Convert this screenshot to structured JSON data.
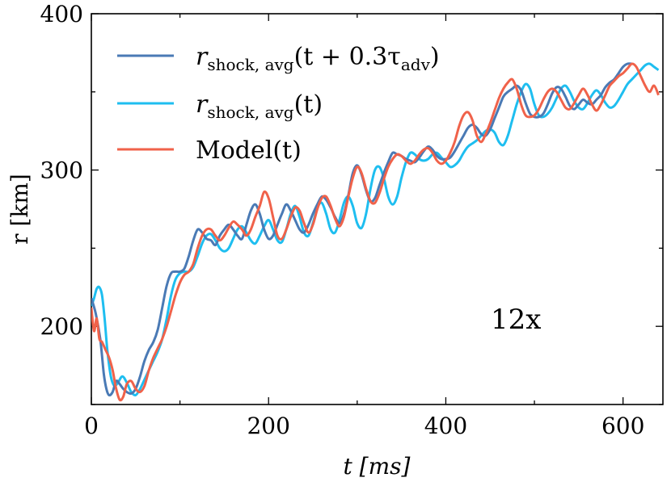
{
  "chart_data": {
    "type": "line",
    "title": "",
    "xlabel": "t [ms]",
    "ylabel": "r [km]",
    "xlim": [
      0,
      645
    ],
    "ylim": [
      150,
      400
    ],
    "xticks": [
      0,
      200,
      400,
      600
    ],
    "yticks": [
      200,
      300,
      400
    ],
    "annotation": "12x",
    "legend_position": "top-left",
    "series": [
      {
        "name": "r_shock,avg(t + 0.3τ_adv)",
        "color": "#4a7ab5",
        "x": [
          0,
          5,
          10,
          14,
          17,
          20,
          24,
          28,
          32,
          36,
          40,
          45,
          50,
          55,
          60,
          65,
          70,
          75,
          80,
          85,
          90,
          95,
          100,
          105,
          110,
          115,
          120,
          125,
          130,
          135,
          140,
          145,
          150,
          155,
          160,
          165,
          170,
          175,
          180,
          185,
          190,
          195,
          200,
          205,
          210,
          215,
          220,
          225,
          230,
          235,
          240,
          245,
          250,
          255,
          260,
          265,
          270,
          275,
          280,
          285,
          290,
          295,
          300,
          305,
          310,
          315,
          320,
          325,
          330,
          335,
          340,
          345,
          350,
          355,
          360,
          365,
          370,
          375,
          380,
          385,
          390,
          395,
          400,
          405,
          410,
          415,
          420,
          425,
          430,
          435,
          440,
          445,
          450,
          455,
          460,
          465,
          470,
          475,
          480,
          485,
          490,
          495,
          500,
          505,
          510,
          515,
          520,
          525,
          530,
          535,
          540,
          545,
          550,
          555,
          560,
          565,
          570,
          575,
          580,
          585,
          590,
          595,
          600,
          605,
          610
        ],
        "y": [
          218,
          208,
          192,
          170,
          160,
          156,
          158,
          165,
          163,
          160,
          158,
          157,
          160,
          168,
          178,
          185,
          190,
          198,
          212,
          226,
          234,
          235,
          235,
          237,
          245,
          255,
          262,
          260,
          256,
          255,
          252,
          258,
          262,
          265,
          262,
          258,
          256,
          265,
          274,
          278,
          272,
          262,
          256,
          258,
          265,
          272,
          278,
          274,
          268,
          262,
          260,
          265,
          272,
          278,
          283,
          281,
          276,
          270,
          266,
          272,
          284,
          298,
          303,
          297,
          287,
          280,
          282,
          290,
          298,
          305,
          311,
          310,
          309,
          307,
          306,
          305,
          308,
          312,
          315,
          313,
          309,
          307,
          307,
          308,
          312,
          317,
          322,
          327,
          329,
          327,
          323,
          322,
          326,
          333,
          340,
          347,
          350,
          352,
          354,
          351,
          343,
          336,
          334,
          334,
          336,
          342,
          349,
          353,
          352,
          347,
          341,
          339,
          342,
          345,
          343,
          342,
          345,
          348,
          353,
          356,
          358,
          362,
          366,
          368,
          368
        ]
      },
      {
        "name": "r_shock,avg(t)",
        "color": "#1ebef0",
        "x": [
          0,
          3,
          6,
          9,
          12,
          15,
          18,
          22,
          26,
          30,
          35,
          40,
          45,
          50,
          55,
          60,
          65,
          70,
          75,
          80,
          85,
          90,
          95,
          100,
          105,
          110,
          115,
          120,
          125,
          130,
          135,
          140,
          145,
          150,
          155,
          160,
          165,
          170,
          175,
          180,
          185,
          190,
          195,
          200,
          205,
          210,
          215,
          220,
          225,
          230,
          235,
          240,
          245,
          250,
          255,
          260,
          265,
          270,
          275,
          280,
          285,
          290,
          295,
          300,
          305,
          310,
          315,
          320,
          325,
          330,
          335,
          340,
          345,
          350,
          355,
          360,
          365,
          370,
          375,
          380,
          385,
          390,
          395,
          400,
          405,
          410,
          415,
          420,
          425,
          430,
          435,
          440,
          445,
          450,
          455,
          460,
          465,
          470,
          475,
          480,
          485,
          490,
          495,
          500,
          505,
          510,
          515,
          520,
          525,
          530,
          535,
          540,
          545,
          550,
          555,
          560,
          565,
          570,
          575,
          580,
          585,
          590,
          595,
          600,
          605,
          610,
          615,
          620,
          625,
          630,
          635,
          640
        ],
        "y": [
          213,
          218,
          224,
          225,
          220,
          205,
          185,
          168,
          162,
          164,
          168,
          164,
          158,
          156,
          160,
          166,
          172,
          178,
          184,
          192,
          205,
          220,
          230,
          234,
          235,
          235,
          238,
          245,
          253,
          258,
          259,
          255,
          250,
          248,
          250,
          256,
          262,
          264,
          260,
          255,
          253,
          258,
          264,
          268,
          262,
          255,
          254,
          262,
          272,
          277,
          270,
          260,
          258,
          266,
          276,
          279,
          272,
          262,
          260,
          268,
          279,
          283,
          277,
          266,
          263,
          272,
          288,
          300,
          302,
          295,
          283,
          278,
          283,
          295,
          305,
          311,
          310,
          307,
          306,
          307,
          310,
          311,
          308,
          305,
          302,
          303,
          306,
          311,
          315,
          317,
          319,
          322,
          325,
          326,
          324,
          318,
          316,
          322,
          332,
          342,
          350,
          355,
          352,
          342,
          335,
          334,
          336,
          340,
          346,
          352,
          354,
          350,
          344,
          340,
          339,
          343,
          348,
          351,
          348,
          343,
          340,
          341,
          345,
          350,
          355,
          358,
          361,
          364,
          367,
          368,
          366,
          364
        ]
      },
      {
        "name": "Model(t)",
        "color": "#f0624a",
        "x": [
          0,
          3,
          6,
          9,
          12,
          16,
          20,
          24,
          28,
          32,
          36,
          40,
          45,
          50,
          55,
          60,
          65,
          70,
          75,
          80,
          85,
          90,
          95,
          100,
          105,
          110,
          115,
          120,
          125,
          130,
          135,
          140,
          145,
          150,
          155,
          160,
          165,
          170,
          175,
          180,
          185,
          190,
          195,
          200,
          205,
          210,
          215,
          220,
          225,
          230,
          235,
          240,
          245,
          250,
          255,
          260,
          265,
          270,
          275,
          280,
          285,
          290,
          295,
          300,
          305,
          310,
          315,
          320,
          325,
          330,
          335,
          340,
          345,
          350,
          355,
          360,
          365,
          370,
          375,
          380,
          385,
          390,
          395,
          400,
          405,
          410,
          415,
          420,
          425,
          430,
          435,
          440,
          445,
          450,
          455,
          460,
          465,
          470,
          475,
          480,
          485,
          490,
          495,
          500,
          505,
          510,
          515,
          520,
          525,
          530,
          535,
          540,
          545,
          550,
          555,
          560,
          565,
          570,
          575,
          580,
          585,
          590,
          595,
          600,
          605,
          610,
          615,
          620,
          625,
          630,
          635,
          640
        ],
        "y": [
          212,
          197,
          205,
          192,
          190,
          185,
          180,
          172,
          160,
          153,
          155,
          163,
          165,
          160,
          158,
          162,
          172,
          180,
          186,
          192,
          200,
          210,
          220,
          228,
          233,
          235,
          240,
          250,
          258,
          262,
          262,
          258,
          255,
          258,
          263,
          267,
          265,
          262,
          258,
          262,
          270,
          277,
          286,
          282,
          270,
          258,
          256,
          262,
          270,
          276,
          274,
          266,
          260,
          265,
          275,
          282,
          283,
          277,
          269,
          264,
          270,
          283,
          295,
          302,
          298,
          288,
          280,
          279,
          285,
          294,
          302,
          307,
          310,
          309,
          306,
          304,
          306,
          310,
          313,
          314,
          311,
          306,
          304,
          306,
          311,
          318,
          328,
          335,
          337,
          332,
          322,
          318,
          323,
          330,
          338,
          346,
          352,
          356,
          358,
          352,
          342,
          335,
          334,
          335,
          339,
          345,
          350,
          352,
          350,
          345,
          340,
          339,
          343,
          348,
          352,
          348,
          342,
          338,
          342,
          348,
          354,
          357,
          360,
          362,
          365,
          368,
          366,
          360,
          354,
          350,
          354,
          348
        ]
      }
    ]
  },
  "legend": [
    {
      "label_main": "r",
      "label_sub": "shock, avg",
      "label_rest": "(t + 0.3τ",
      "label_sub2": "adv",
      "label_end": ")",
      "color": "#4a7ab5"
    },
    {
      "label_main": "r",
      "label_sub": "shock, avg",
      "label_rest": "(t)",
      "color": "#1ebef0"
    },
    {
      "label_main": "Model(t)",
      "color": "#f0624a"
    }
  ]
}
